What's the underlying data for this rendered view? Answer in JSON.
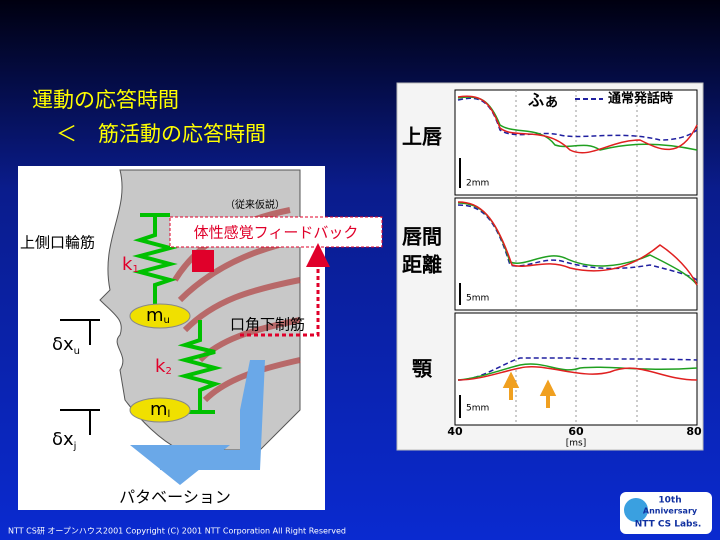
{
  "title": {
    "line1": "運動の応答時間",
    "line2": "＜　筋活動の応答時間"
  },
  "diagram": {
    "note": "（従来仮説）",
    "feedback": "体性感覚フィードバック",
    "upper_muscle": "上側口輪筋",
    "lower_muscle": "口角下制筋",
    "k1": "k",
    "k1_sub": "1",
    "k2": "k",
    "k2_sub": "2",
    "mu": "m",
    "mu_sub": "u",
    "ml": "m",
    "ml_sub": "l",
    "dxu": "δx",
    "dxu_sub": "u",
    "dxj": "δx",
    "dxj_sub": "j",
    "perturbation": "パタベーション"
  },
  "plot": {
    "label_fu": "ふ",
    "label_a": "あ",
    "legend": "通常発話時",
    "panels": [
      {
        "label": [
          "上唇"
        ],
        "scale": "2mm"
      },
      {
        "label": [
          "唇間",
          "距離"
        ],
        "scale": "5mm"
      },
      {
        "label": [
          "顎"
        ],
        "scale": "5mm"
      }
    ],
    "xticks": [
      "40",
      "60",
      "80"
    ],
    "xunit": "[ms]"
  },
  "footer": "NTT CS研 オープンハウス2001  Copyright (C) 2001 NTT Corporation All Right  Reserved",
  "logo": {
    "line1": "10th",
    "line2": "Anniversary",
    "line3": "NTT CS Labs."
  }
}
